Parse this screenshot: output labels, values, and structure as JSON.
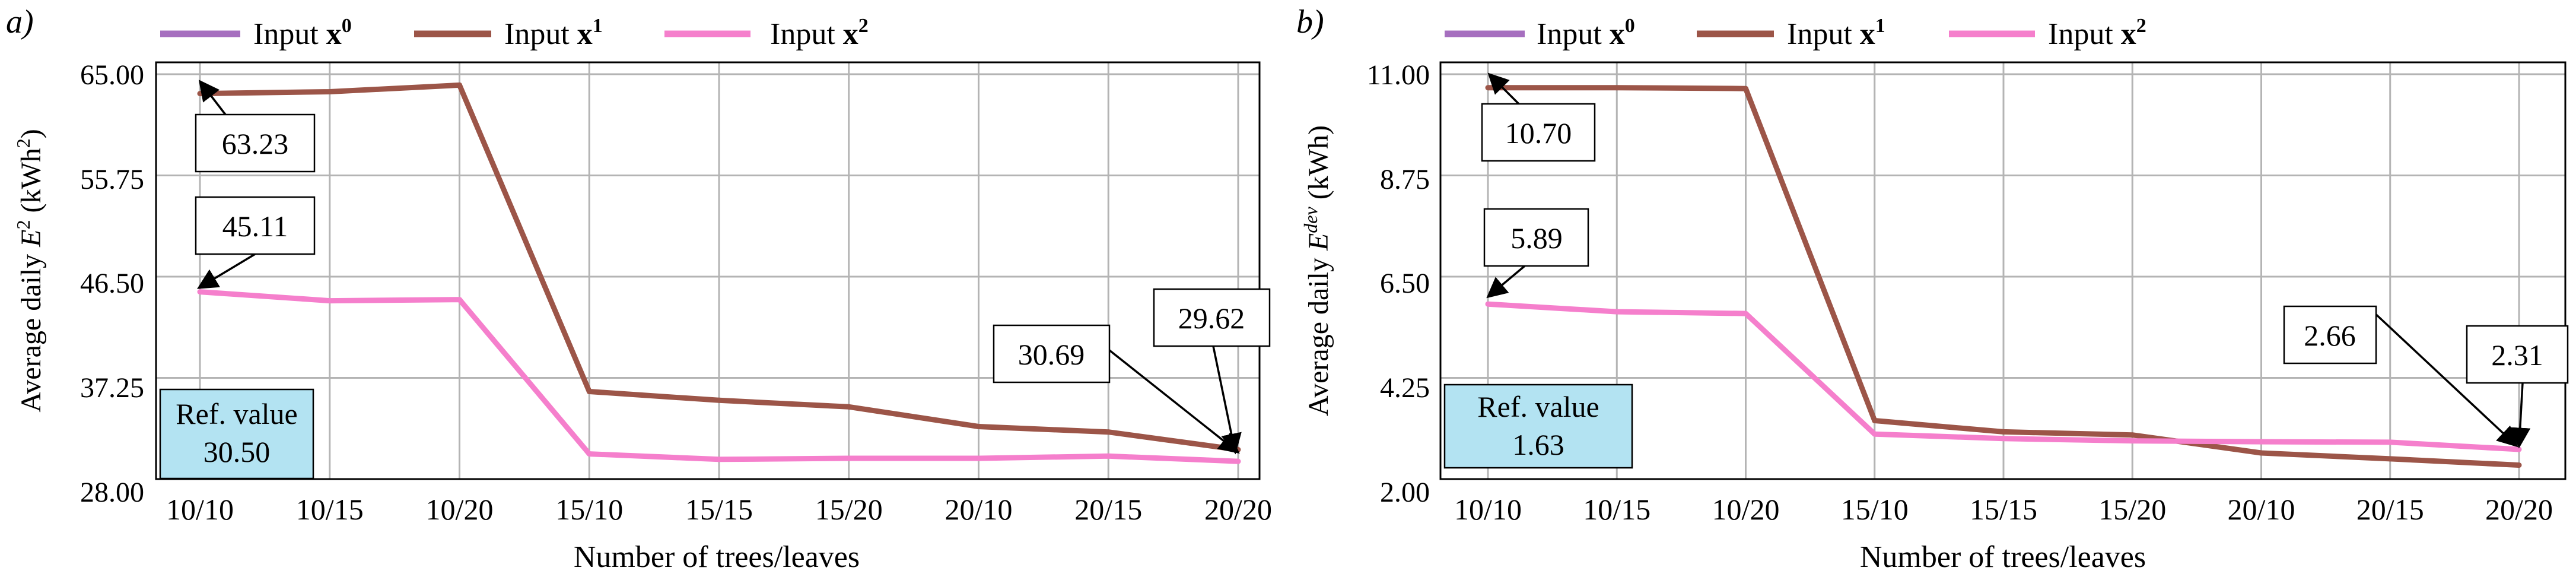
{
  "legend_entries": [
    {
      "prefix": "Input ",
      "symbol": "x",
      "superscript": "0",
      "color": "#a66fbf"
    },
    {
      "prefix": "Input ",
      "symbol": "x",
      "superscript": "1",
      "color": "#9c5548"
    },
    {
      "prefix": "Input ",
      "symbol": "x",
      "superscript": "2",
      "color": "#f57fcc"
    }
  ],
  "colors": {
    "grid": "#b4b4b4",
    "ref_box_fill": "#b3e3f2",
    "axis": "#000000"
  },
  "chart_data": [
    {
      "type": "line",
      "panel_label": "a)",
      "categories": [
        "10/10",
        "10/15",
        "10/20",
        "15/10",
        "15/15",
        "15/20",
        "20/10",
        "20/15",
        "20/20"
      ],
      "xlabel": "Number of trees/leaves",
      "ylabel": {
        "pre": "Average daily ",
        "italic": "E",
        "sup": "2",
        "post": " (kWh",
        "post_sup": "2",
        "close": ")"
      },
      "ylim": [
        28.0,
        65.0
      ],
      "yticks": [
        "65.00",
        "55.75",
        "46.50",
        "37.25",
        "28.00"
      ],
      "series": [
        {
          "name": "Input x1",
          "color": "#9c5548",
          "values": [
            63.23,
            63.4,
            64.0,
            36.0,
            35.2,
            34.6,
            32.8,
            32.3,
            30.69
          ]
        },
        {
          "name": "Input x2",
          "color": "#f57fcc",
          "values": [
            45.11,
            44.3,
            44.4,
            30.3,
            29.8,
            29.9,
            29.9,
            30.1,
            29.62
          ]
        }
      ],
      "annotations": [
        "63.23",
        "45.11",
        "30.69",
        "29.62"
      ],
      "reference": {
        "label": "Ref. value",
        "value": "30.50"
      }
    },
    {
      "type": "line",
      "panel_label": "b)",
      "categories": [
        "10/10",
        "10/15",
        "10/20",
        "15/10",
        "15/15",
        "15/20",
        "20/10",
        "20/15",
        "20/20"
      ],
      "xlabel": "Number of trees/leaves",
      "ylabel": {
        "pre": "Average daily ",
        "italic": "E",
        "sup": "dev",
        "post": " (kWh)",
        "post_sup": "",
        "close": ""
      },
      "ylim": [
        2.0,
        11.0
      ],
      "yticks": [
        "11.00",
        "8.75",
        "6.50",
        "4.25",
        "2.00"
      ],
      "series": [
        {
          "name": "Input x1",
          "color": "#9c5548",
          "values": [
            10.7,
            10.7,
            10.68,
            3.3,
            3.05,
            2.98,
            2.58,
            2.45,
            2.31
          ]
        },
        {
          "name": "Input x2",
          "color": "#f57fcc",
          "values": [
            5.89,
            5.72,
            5.68,
            3.0,
            2.9,
            2.85,
            2.83,
            2.82,
            2.66
          ]
        }
      ],
      "annotations": [
        "10.70",
        "5.89",
        "2.66",
        "2.31"
      ],
      "reference": {
        "label": "Ref. value",
        "value": "1.63"
      }
    }
  ]
}
